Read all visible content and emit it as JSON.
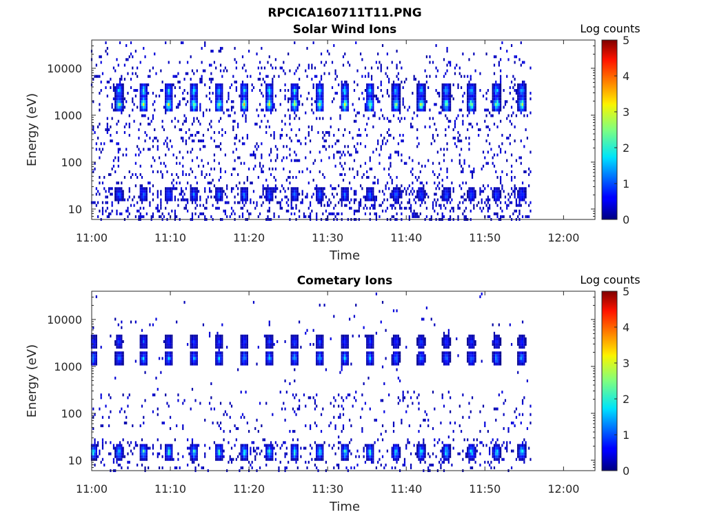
{
  "figure": {
    "title": "RPCICA160711T11.PNG"
  },
  "chart_data": [
    {
      "type": "heatmap",
      "title": "Solar Wind Ions",
      "xlabel": "Time",
      "ylabel": "Energy (eV)",
      "xlim": [
        "11:00",
        "12:04"
      ],
      "x_ticks": [
        "11:00",
        "11:10",
        "11:20",
        "11:30",
        "11:40",
        "11:50",
        "12:00"
      ],
      "y_scale": "log",
      "ylim": [
        6,
        40000
      ],
      "y_ticks": [
        {
          "value": 10,
          "label": "10"
        },
        {
          "value": 100,
          "label": "100"
        },
        {
          "value": 1000,
          "label": "1000"
        },
        {
          "value": 10000,
          "label": "10000"
        }
      ],
      "data_x_range": [
        "11:00",
        "11:56"
      ],
      "burst_times_min": [
        3.5,
        6.6,
        9.8,
        13.0,
        16.2,
        19.4,
        22.6,
        25.8,
        29.0,
        32.2,
        35.4,
        38.7,
        41.9,
        45.1,
        48.3,
        51.5,
        54.7
      ],
      "bands": [
        {
          "energy_ev": 1700,
          "peak_log_counts": 3.0
        },
        {
          "energy_ev": 3300,
          "peak_log_counts": 2.0
        },
        {
          "energy_ev": 20,
          "peak_log_counts": 1.3
        }
      ],
      "colorbar": {
        "label": "Log counts",
        "range": [
          0,
          5
        ],
        "ticks": [
          0,
          1,
          2,
          3,
          4,
          5
        ],
        "colormap": "jet"
      },
      "grid": false
    },
    {
      "type": "heatmap",
      "title": "Cometary Ions",
      "xlabel": "Time",
      "ylabel": "Energy (eV)",
      "xlim": [
        "11:00",
        "12:04"
      ],
      "x_ticks": [
        "11:00",
        "11:10",
        "11:20",
        "11:30",
        "11:40",
        "11:50",
        "12:00"
      ],
      "y_scale": "log",
      "ylim": [
        6,
        40000
      ],
      "y_ticks": [
        {
          "value": 10,
          "label": "10"
        },
        {
          "value": 100,
          "label": "100"
        },
        {
          "value": 1000,
          "label": "1000"
        },
        {
          "value": 10000,
          "label": "10000"
        }
      ],
      "data_x_range": [
        "11:00",
        "11:56"
      ],
      "burst_times_min": [
        0.2,
        3.5,
        6.6,
        9.8,
        13.0,
        16.2,
        19.4,
        22.6,
        25.8,
        29.0,
        32.2,
        35.4,
        38.7,
        41.9,
        45.1,
        48.3,
        51.5,
        54.7
      ],
      "bands": [
        {
          "energy_ev": 1500,
          "peak_log_counts": 1.6
        },
        {
          "energy_ev": 3300,
          "peak_log_counts": 1.0
        },
        {
          "energy_ev": 15,
          "peak_log_counts": 2.2
        }
      ],
      "colorbar": {
        "label": "Log counts",
        "range": [
          0,
          5
        ],
        "ticks": [
          0,
          1,
          2,
          3,
          4,
          5
        ],
        "colormap": "jet"
      },
      "grid": false
    }
  ]
}
